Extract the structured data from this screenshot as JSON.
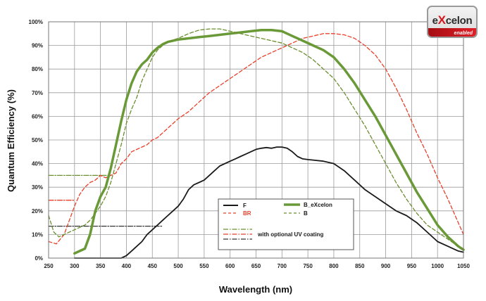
{
  "chart_data": {
    "type": "line",
    "xlabel": "Wavelength (nm)",
    "ylabel": "Quantum Efficiency (%)",
    "xlim": [
      250,
      1050
    ],
    "ylim": [
      0,
      100
    ],
    "x_ticks": [
      250,
      300,
      350,
      400,
      450,
      500,
      550,
      600,
      650,
      700,
      750,
      800,
      850,
      900,
      950,
      1000,
      1050
    ],
    "y_ticks": [
      0,
      10,
      20,
      30,
      40,
      50,
      60,
      70,
      80,
      90,
      100
    ],
    "y_tick_labels": [
      "0%",
      "10%",
      "20%",
      "30%",
      "40%",
      "50%",
      "60%",
      "70%",
      "80%",
      "90%",
      "100%"
    ],
    "grid": true,
    "legend_position": "bottom-center",
    "series": [
      {
        "name": "F",
        "color": "#1a1a1a",
        "style": "solid",
        "points": [
          [
            300,
            0
          ],
          [
            390,
            0
          ],
          [
            400,
            1
          ],
          [
            410,
            3
          ],
          [
            420,
            5
          ],
          [
            430,
            7
          ],
          [
            440,
            10
          ],
          [
            450,
            12
          ],
          [
            460,
            14
          ],
          [
            470,
            16
          ],
          [
            480,
            18
          ],
          [
            490,
            20
          ],
          [
            500,
            22
          ],
          [
            510,
            25
          ],
          [
            520,
            29
          ],
          [
            530,
            31
          ],
          [
            540,
            32
          ],
          [
            550,
            33
          ],
          [
            560,
            35
          ],
          [
            570,
            37
          ],
          [
            580,
            39
          ],
          [
            600,
            41
          ],
          [
            610,
            42
          ],
          [
            620,
            43
          ],
          [
            630,
            44
          ],
          [
            640,
            45
          ],
          [
            650,
            46
          ],
          [
            660,
            46.5
          ],
          [
            670,
            46.8
          ],
          [
            680,
            46.5
          ],
          [
            690,
            47
          ],
          [
            700,
            47
          ],
          [
            710,
            46.5
          ],
          [
            720,
            45
          ],
          [
            730,
            43
          ],
          [
            740,
            42
          ],
          [
            750,
            41.7
          ],
          [
            760,
            41.5
          ],
          [
            780,
            41
          ],
          [
            800,
            40
          ],
          [
            820,
            37
          ],
          [
            840,
            33
          ],
          [
            860,
            29
          ],
          [
            880,
            26
          ],
          [
            900,
            23
          ],
          [
            920,
            20
          ],
          [
            940,
            18
          ],
          [
            960,
            15
          ],
          [
            980,
            11
          ],
          [
            1000,
            7
          ],
          [
            1020,
            5
          ],
          [
            1040,
            3
          ],
          [
            1050,
            2.5
          ]
        ]
      },
      {
        "name": "BR",
        "color": "#e8402a",
        "style": "dashed",
        "points": [
          [
            250,
            7
          ],
          [
            265,
            6
          ],
          [
            280,
            10
          ],
          [
            290,
            16
          ],
          [
            300,
            22
          ],
          [
            310,
            27
          ],
          [
            320,
            30
          ],
          [
            330,
            32
          ],
          [
            340,
            33
          ],
          [
            350,
            35
          ],
          [
            360,
            34
          ],
          [
            370,
            35
          ],
          [
            380,
            36
          ],
          [
            390,
            40
          ],
          [
            400,
            42
          ],
          [
            410,
            45
          ],
          [
            420,
            46
          ],
          [
            430,
            47
          ],
          [
            440,
            48
          ],
          [
            450,
            50
          ],
          [
            460,
            51
          ],
          [
            470,
            53
          ],
          [
            480,
            55
          ],
          [
            500,
            59
          ],
          [
            520,
            62
          ],
          [
            540,
            66
          ],
          [
            560,
            70
          ],
          [
            580,
            73
          ],
          [
            600,
            76
          ],
          [
            620,
            79
          ],
          [
            640,
            82
          ],
          [
            660,
            85
          ],
          [
            680,
            87
          ],
          [
            700,
            89
          ],
          [
            720,
            91
          ],
          [
            740,
            93
          ],
          [
            760,
            94
          ],
          [
            780,
            95
          ],
          [
            800,
            95
          ],
          [
            820,
            94.5
          ],
          [
            840,
            93
          ],
          [
            860,
            90
          ],
          [
            880,
            86
          ],
          [
            900,
            80
          ],
          [
            920,
            72
          ],
          [
            940,
            63
          ],
          [
            960,
            53
          ],
          [
            980,
            44
          ],
          [
            1000,
            34
          ],
          [
            1020,
            25
          ],
          [
            1040,
            15
          ],
          [
            1050,
            10
          ]
        ]
      },
      {
        "name": "B_eXcelon",
        "color": "#6a9a38",
        "style": "solid-thick",
        "points": [
          [
            300,
            2
          ],
          [
            310,
            3
          ],
          [
            320,
            4
          ],
          [
            330,
            10
          ],
          [
            340,
            20
          ],
          [
            350,
            26
          ],
          [
            360,
            30
          ],
          [
            370,
            38
          ],
          [
            380,
            48
          ],
          [
            390,
            58
          ],
          [
            400,
            67
          ],
          [
            410,
            74
          ],
          [
            420,
            79
          ],
          [
            430,
            82
          ],
          [
            440,
            84
          ],
          [
            450,
            87
          ],
          [
            460,
            89
          ],
          [
            470,
            90.5
          ],
          [
            480,
            91.5
          ],
          [
            500,
            92.5
          ],
          [
            520,
            93
          ],
          [
            540,
            93.5
          ],
          [
            560,
            94
          ],
          [
            580,
            94.5
          ],
          [
            600,
            95
          ],
          [
            620,
            95.5
          ],
          [
            640,
            96
          ],
          [
            660,
            96.5
          ],
          [
            680,
            96.5
          ],
          [
            700,
            96
          ],
          [
            710,
            95
          ],
          [
            720,
            94
          ],
          [
            740,
            92
          ],
          [
            760,
            90
          ],
          [
            780,
            88
          ],
          [
            800,
            85
          ],
          [
            820,
            80
          ],
          [
            840,
            74
          ],
          [
            860,
            67
          ],
          [
            880,
            60
          ],
          [
            900,
            52
          ],
          [
            920,
            44
          ],
          [
            940,
            36
          ],
          [
            960,
            28
          ],
          [
            980,
            21
          ],
          [
            1000,
            14
          ],
          [
            1020,
            9
          ],
          [
            1040,
            5
          ],
          [
            1050,
            3.5
          ]
        ]
      },
      {
        "name": "B",
        "color": "#6a8f2e",
        "style": "dashed",
        "points": [
          [
            250,
            18
          ],
          [
            260,
            11
          ],
          [
            270,
            9
          ],
          [
            280,
            10
          ],
          [
            290,
            11
          ],
          [
            300,
            12
          ],
          [
            310,
            13
          ],
          [
            320,
            14
          ],
          [
            330,
            16
          ],
          [
            340,
            19
          ],
          [
            350,
            22
          ],
          [
            360,
            26
          ],
          [
            370,
            32
          ],
          [
            380,
            40
          ],
          [
            390,
            48
          ],
          [
            400,
            57
          ],
          [
            410,
            63
          ],
          [
            420,
            68
          ],
          [
            430,
            75
          ],
          [
            440,
            80
          ],
          [
            450,
            85
          ],
          [
            460,
            88
          ],
          [
            470,
            90
          ],
          [
            480,
            91.5
          ],
          [
            500,
            93
          ],
          [
            520,
            95
          ],
          [
            540,
            96.5
          ],
          [
            560,
            97
          ],
          [
            580,
            97
          ],
          [
            600,
            96
          ],
          [
            620,
            95
          ],
          [
            640,
            94
          ],
          [
            660,
            93
          ],
          [
            680,
            92
          ],
          [
            700,
            91
          ],
          [
            720,
            89
          ],
          [
            740,
            87
          ],
          [
            760,
            84
          ],
          [
            780,
            80
          ],
          [
            800,
            76
          ],
          [
            820,
            70
          ],
          [
            840,
            63
          ],
          [
            860,
            56
          ],
          [
            880,
            48
          ],
          [
            900,
            40
          ],
          [
            920,
            32
          ],
          [
            940,
            25
          ],
          [
            960,
            19
          ],
          [
            980,
            14
          ],
          [
            1000,
            11
          ],
          [
            1020,
            8
          ],
          [
            1040,
            5
          ],
          [
            1050,
            4
          ]
        ]
      },
      {
        "name": "with optional UV coating",
        "color": "#6a8f2e",
        "style": "dashdot",
        "points": [
          [
            250,
            35
          ],
          [
            370,
            35
          ]
        ]
      },
      {
        "name": "with optional UV coating",
        "color": "#e8402a",
        "style": "dashdot",
        "points": [
          [
            250,
            24.5
          ],
          [
            300,
            24.5
          ]
        ]
      },
      {
        "name": "with optional UV coating",
        "color": "#333333",
        "style": "dashdot",
        "points": [
          [
            250,
            13.5
          ],
          [
            470,
            13.5
          ]
        ]
      }
    ],
    "legend": [
      {
        "label": "F",
        "color": "#1a1a1a",
        "style": "solid"
      },
      {
        "label": "B_eXcelon",
        "color": "#6a9a38",
        "style": "solid-thick"
      },
      {
        "label": "BR",
        "color": "#e8402a",
        "style": "dashed"
      },
      {
        "label": "B",
        "color": "#6a8f2e",
        "style": "dashed"
      },
      {
        "label": "with optional UV coating",
        "color": "#6a8f2e",
        "style": "dashdot"
      }
    ]
  },
  "logo": {
    "prefix": "e",
    "x_letter": "X",
    "suffix": "celon",
    "subtitle": "enabled"
  }
}
